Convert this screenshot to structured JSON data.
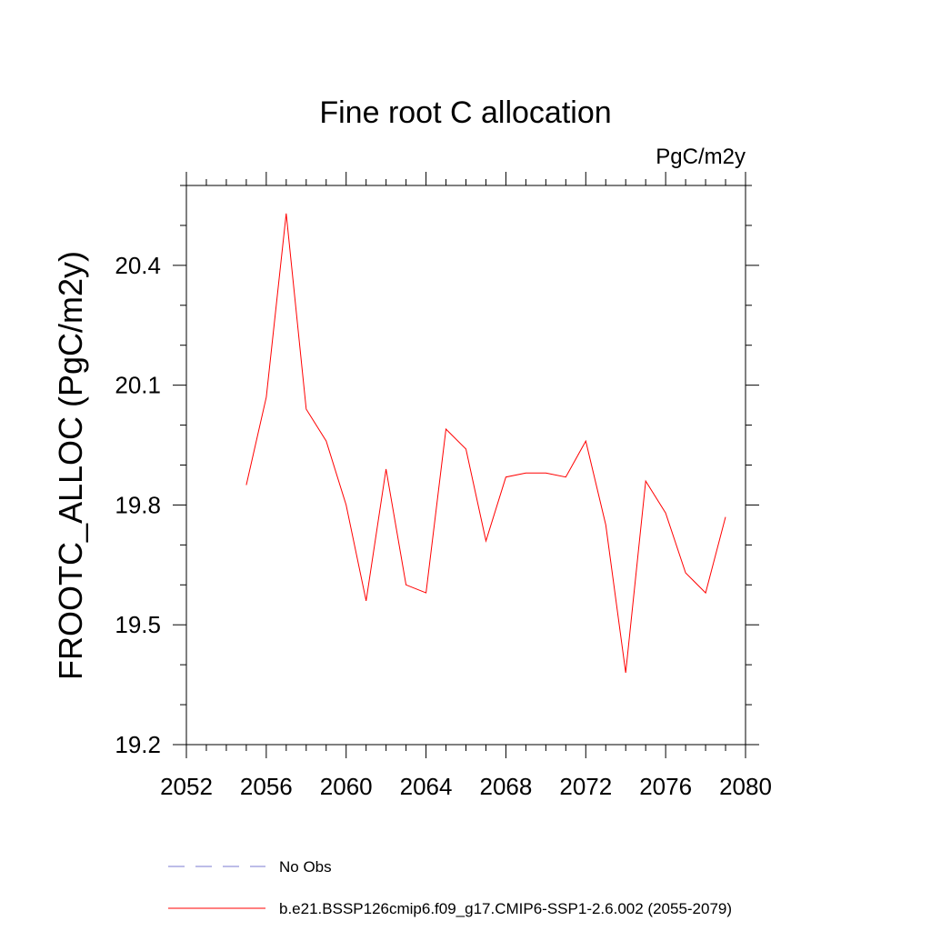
{
  "chart_data": {
    "type": "line",
    "title": "Fine root C allocation",
    "units_label": "PgC/m2y",
    "xlabel": "",
    "ylabel": "FROOTC_ALLOC  (PgC/m2y)",
    "xlim": [
      2052,
      2080
    ],
    "ylim": [
      19.2,
      20.6
    ],
    "x_ticks": [
      2052,
      2056,
      2060,
      2064,
      2068,
      2072,
      2076,
      2080
    ],
    "x_tick_labels": [
      "2052",
      "2056",
      "2060",
      "2064",
      "2068",
      "2072",
      "2076",
      "2080"
    ],
    "x_minor_step": 1,
    "y_ticks": [
      19.2,
      19.5,
      19.8,
      20.1,
      20.4
    ],
    "y_tick_labels": [
      "19.2",
      "19.5",
      "19.8",
      "20.1",
      "20.4"
    ],
    "y_minor_step": 0.1,
    "grid": false,
    "series": [
      {
        "name": "b.e21.BSSP126cmip6.f09_g17.CMIP6-SSP1-2.6.002 (2055-2079)",
        "color": "#ff0000",
        "style": "solid",
        "x": [
          2055,
          2056,
          2057,
          2058,
          2059,
          2060,
          2061,
          2062,
          2063,
          2064,
          2065,
          2066,
          2067,
          2068,
          2069,
          2070,
          2071,
          2072,
          2073,
          2074,
          2075,
          2076,
          2077,
          2078,
          2079
        ],
        "values": [
          19.85,
          20.07,
          20.53,
          20.04,
          19.96,
          19.8,
          19.56,
          19.89,
          19.6,
          19.58,
          19.99,
          19.94,
          19.71,
          19.87,
          19.88,
          19.88,
          19.87,
          19.96,
          19.75,
          19.38,
          19.86,
          19.78,
          19.63,
          19.58,
          19.77
        ]
      }
    ],
    "legend": {
      "placement": "bottom",
      "entries": [
        {
          "label": "No Obs",
          "color": "#7b7bd0",
          "style": "dashed"
        },
        {
          "label": "b.e21.BSSP126cmip6.f09_g17.CMIP6-SSP1-2.6.002 (2055-2079)",
          "color": "#ff0000",
          "style": "solid"
        }
      ]
    }
  }
}
